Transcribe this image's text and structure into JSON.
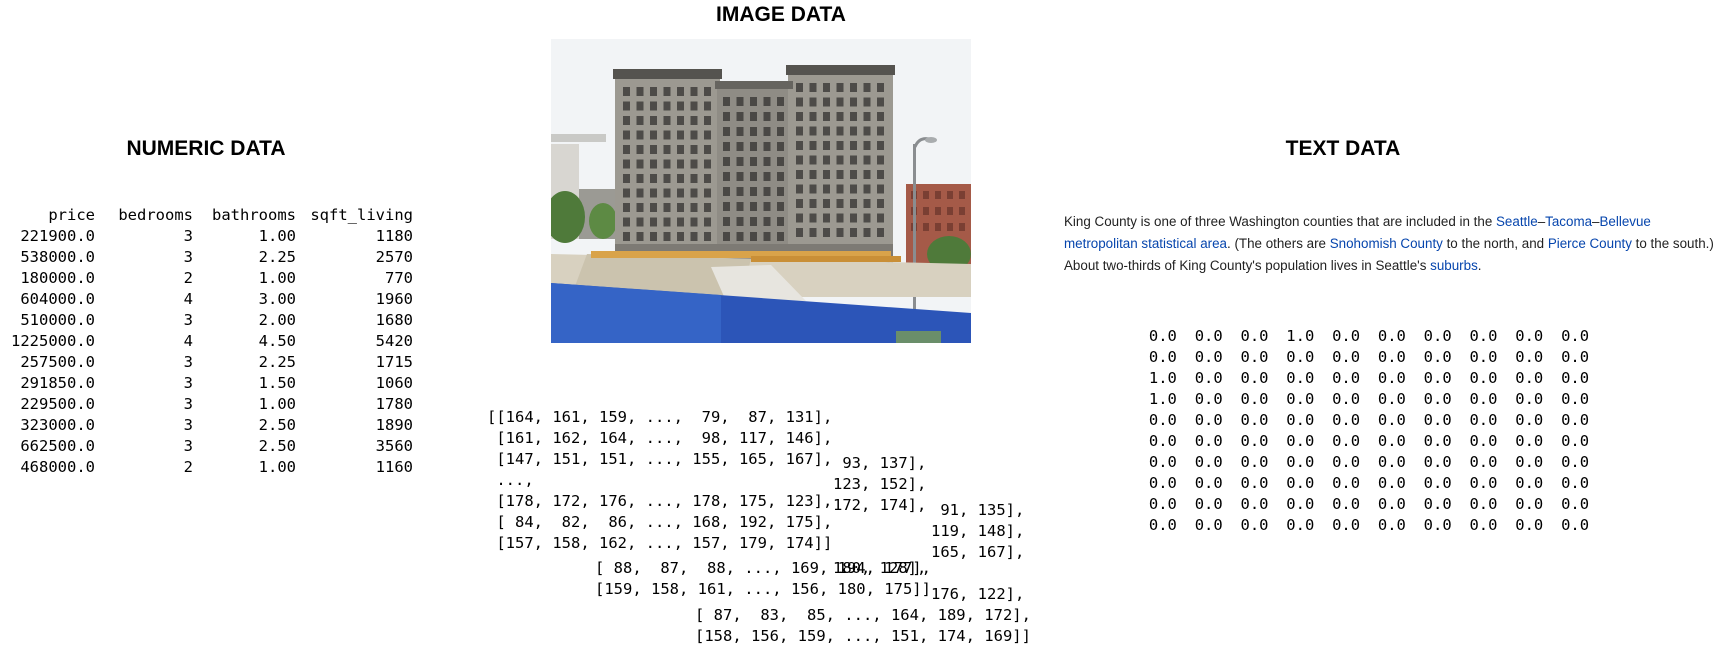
{
  "headings": {
    "image": "IMAGE DATA",
    "numeric": "NUMERIC DATA",
    "text": "TEXT DATA"
  },
  "numeric_table": {
    "columns": [
      "price",
      "bedrooms",
      "bathrooms",
      "sqft_living"
    ],
    "rows": [
      [
        "221900.0",
        "3",
        "1.00",
        "1180"
      ],
      [
        "538000.0",
        "3",
        "2.25",
        "2570"
      ],
      [
        "180000.0",
        "2",
        "1.00",
        "770"
      ],
      [
        "604000.0",
        "4",
        "3.00",
        "1960"
      ],
      [
        "510000.0",
        "3",
        "2.00",
        "1680"
      ],
      [
        "1225000.0",
        "4",
        "4.50",
        "5420"
      ],
      [
        "257500.0",
        "3",
        "2.25",
        "1715"
      ],
      [
        "291850.0",
        "3",
        "1.50",
        "1060"
      ],
      [
        "229500.0",
        "3",
        "1.00",
        "1780"
      ],
      [
        "323000.0",
        "3",
        "2.50",
        "1890"
      ],
      [
        "662500.0",
        "3",
        "2.50",
        "3560"
      ],
      [
        "468000.0",
        "2",
        "1.00",
        "1160"
      ]
    ]
  },
  "image_arrays": {
    "channel_1": [
      "[[164, 161, 159, ...,  79,  87, 131],",
      " [161, 162, 164, ...,  98, 117, 146],",
      " [147, 151, 151, ..., 155, 165, 167],",
      " ...,",
      " [178, 172, 176, ..., 178, 175, 123],",
      " [ 84,  82,  86, ..., 168, 192, 175],",
      " [157, 158, 162, ..., 157, 179, 174]]"
    ],
    "channel_2_tail": [
      " 93, 137],",
      "123, 152],",
      "172, 174],",
      "",
      "",
      "180, 128],"
    ],
    "channel_2_rows": [
      "[ 88,  87,  88, ..., 169, 194, 177],",
      "[159, 158, 161, ..., 156, 180, 175]]"
    ],
    "channel_3_tail": [
      " 91, 135],",
      "119, 148],",
      "165, 167],",
      "",
      "176, 122],"
    ],
    "channel_3_rows": [
      "[ 87,  83,  85, ..., 164, 189, 172],",
      "[158, 156, 159, ..., 151, 174, 169]]"
    ]
  },
  "text_paragraph": {
    "p1": "King County is one of three Washington counties that are included in the ",
    "link_seattle": "Seattle",
    "dash1": "–",
    "link_tacoma": "Tacoma",
    "dash2": "–",
    "link_bellevue_msa": "Bellevue metropolitan statistical area",
    "p2": ". (The others are ",
    "link_snohomish": "Snohomish County",
    "p3": " to the north, and ",
    "link_pierce": "Pierce County",
    "p4": " to the south.) About two-thirds of King County's population lives in Seattle's ",
    "link_suburbs": "suburbs",
    "p5": "."
  },
  "text_matrix": [
    [
      "0.0",
      "0.0",
      "0.0",
      "1.0",
      "0.0",
      "0.0",
      "0.0",
      "0.0",
      "0.0",
      "0.0"
    ],
    [
      "0.0",
      "0.0",
      "0.0",
      "0.0",
      "0.0",
      "0.0",
      "0.0",
      "0.0",
      "0.0",
      "0.0"
    ],
    [
      "1.0",
      "0.0",
      "0.0",
      "0.0",
      "0.0",
      "0.0",
      "0.0",
      "0.0",
      "0.0",
      "0.0"
    ],
    [
      "1.0",
      "0.0",
      "0.0",
      "0.0",
      "0.0",
      "0.0",
      "0.0",
      "0.0",
      "0.0",
      "0.0"
    ],
    [
      "0.0",
      "0.0",
      "0.0",
      "0.0",
      "0.0",
      "0.0",
      "0.0",
      "0.0",
      "0.0",
      "0.0"
    ],
    [
      "0.0",
      "0.0",
      "0.0",
      "0.0",
      "0.0",
      "0.0",
      "0.0",
      "0.0",
      "0.0",
      "0.0"
    ],
    [
      "0.0",
      "0.0",
      "0.0",
      "0.0",
      "0.0",
      "0.0",
      "0.0",
      "0.0",
      "0.0",
      "0.0"
    ],
    [
      "0.0",
      "0.0",
      "0.0",
      "0.0",
      "0.0",
      "0.0",
      "0.0",
      "0.0",
      "0.0",
      "0.0"
    ],
    [
      "0.0",
      "0.0",
      "0.0",
      "0.0",
      "0.0",
      "0.0",
      "0.0",
      "0.0",
      "0.0",
      "0.0"
    ],
    [
      "0.0",
      "0.0",
      "0.0",
      "0.0",
      "0.0",
      "0.0",
      "0.0",
      "0.0",
      "0.0",
      "0.0"
    ]
  ],
  "colors": {
    "link": "#0645ad",
    "fence_blue": "#2c55b8",
    "building_stone": "#9a978f",
    "sky": "#f2f4f6"
  }
}
